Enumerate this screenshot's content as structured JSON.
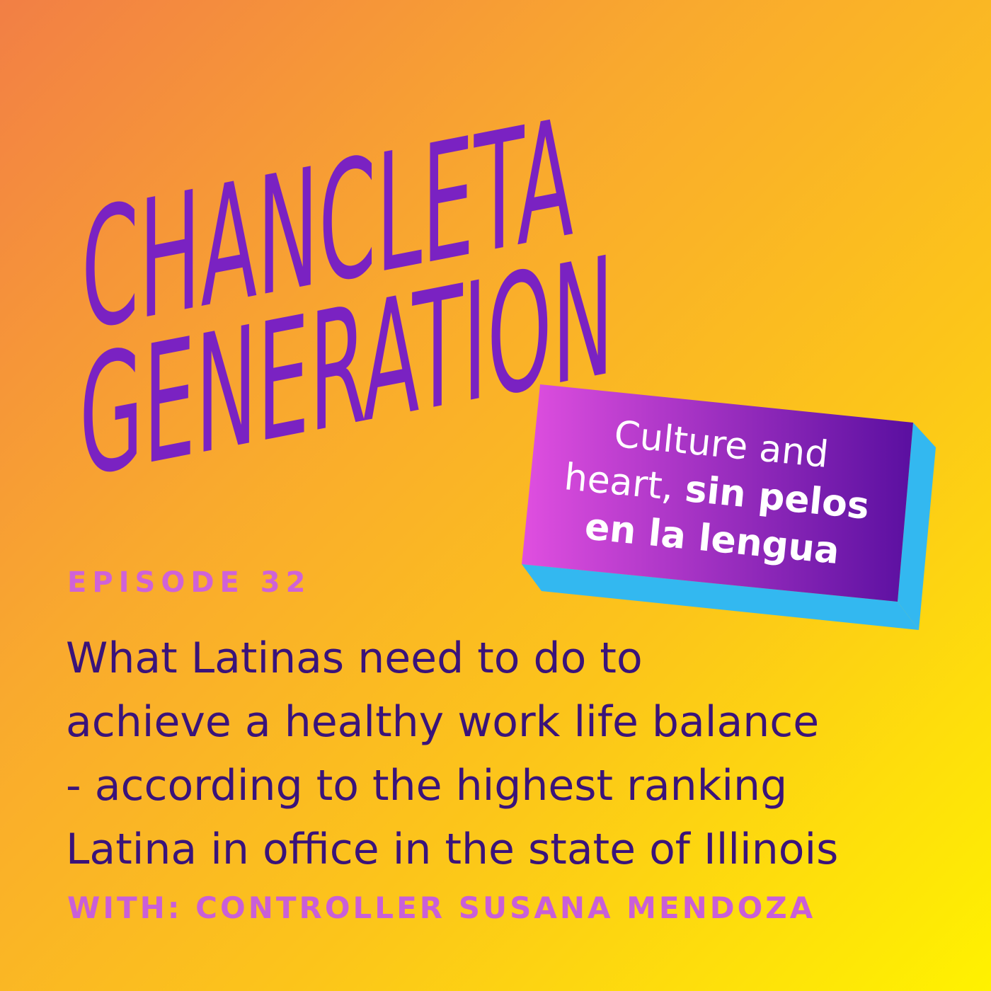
{
  "logo": {
    "line1": "CHANCLETA",
    "line2": "GENERATION"
  },
  "tagline": {
    "regular": [
      "Culture and",
      "heart,"
    ],
    "bold": [
      "sin pelos",
      "en la lengua"
    ]
  },
  "episode": "EPISODE 32",
  "description": [
    "What Latinas need to do to",
    "achieve a healthy work life balance",
    "- according to the highest ranking",
    "Latina in office in the state of Illinois"
  ],
  "guest": "WITH: CONTROLLER SUSANA MENDOZA"
}
